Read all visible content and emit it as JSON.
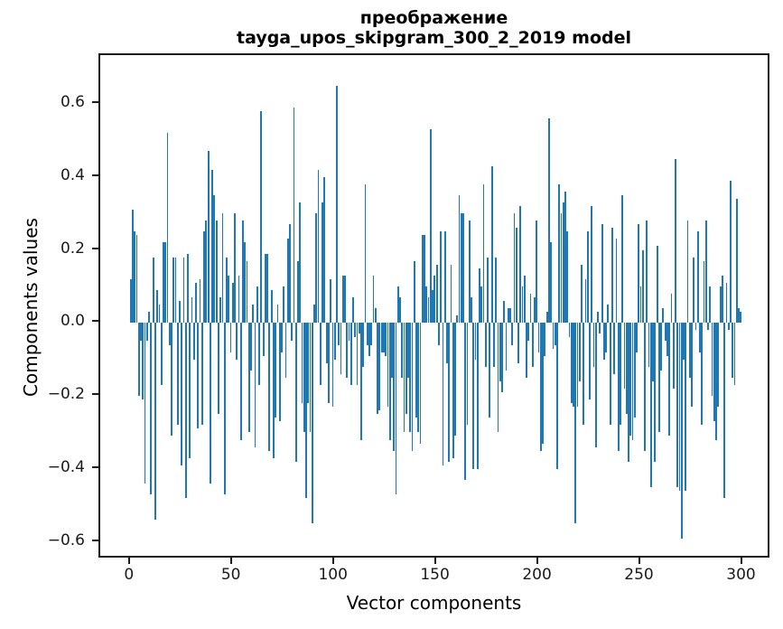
{
  "title": {
    "line1": "преображение",
    "line2": "tayga_upos_skipgram_300_2_2019 model"
  },
  "axes": {
    "xlabel": "Vector components",
    "ylabel": "Components values",
    "x_ticks": [
      0,
      50,
      100,
      150,
      200,
      250,
      300
    ],
    "x_tick_labels": [
      "0",
      "50",
      "100",
      "150",
      "200",
      "250",
      "300"
    ],
    "y_ticks": [
      0.6,
      0.4,
      0.2,
      0.0,
      -0.2,
      -0.4,
      -0.6
    ],
    "y_tick_labels": [
      "0.6",
      "0.4",
      "0.2",
      "0.0",
      "−0.2",
      "−0.4",
      "−0.6"
    ]
  },
  "chart_data": {
    "type": "bar",
    "title": "преображение\ntayga_upos_skipgram_300_2_2019 model",
    "xlabel": "Vector components",
    "ylabel": "Components values",
    "x_start": 0,
    "x_end": 299,
    "xlim": [
      -14.95,
      313.95
    ],
    "ylim": [
      -0.648,
      0.7336
    ],
    "grid": false,
    "legend": null,
    "bar_color": "#1f77b4",
    "values": [
      0.12,
      0.31,
      0.25,
      0.24,
      -0.2,
      -0.05,
      -0.21,
      -0.44,
      -0.05,
      0.03,
      -0.47,
      0.18,
      -0.54,
      0.09,
      0.05,
      -0.17,
      0.22,
      0.22,
      0.52,
      -0.06,
      -0.31,
      0.18,
      0.18,
      -0.28,
      0.06,
      -0.39,
      0.18,
      -0.48,
      0.19,
      -0.37,
      0.07,
      -0.1,
      0.11,
      -0.29,
      0.12,
      -0.28,
      0.25,
      0.28,
      0.47,
      -0.44,
      0.42,
      0.35,
      0.28,
      -0.25,
      0.07,
      0.3,
      -0.47,
      0.18,
      0.13,
      -0.08,
      0.11,
      0.3,
      -0.1,
      0.13,
      -0.32,
      0.28,
      0.22,
      0.17,
      -0.3,
      -0.13,
      0.05,
      -0.34,
      0.1,
      -0.17,
      0.58,
      -0.09,
      0.19,
      0.19,
      -0.35,
      0.09,
      -0.37,
      -0.26,
      0.05,
      -0.27,
      -0.08,
      0.1,
      -0.15,
      0.23,
      0.27,
      -0.05,
      0.59,
      -0.38,
      0.17,
      0.33,
      -0.22,
      -0.3,
      -0.48,
      -0.22,
      -0.3,
      -0.55,
      0.05,
      0.3,
      0.42,
      -0.17,
      0.33,
      0.4,
      -0.11,
      -0.22,
      0.12,
      -0.23,
      -0.1,
      0.65,
      -0.06,
      -0.14,
      0.13,
      0.13,
      -0.15,
      -0.05,
      -0.17,
      0.07,
      -0.04,
      -0.17,
      -0.03,
      -0.32,
      -0.12,
      0.38,
      -0.06,
      -0.09,
      -0.06,
      0.13,
      0.04,
      -0.25,
      -0.24,
      -0.08,
      -0.08,
      -0.09,
      -0.23,
      -0.32,
      -0.15,
      -0.35,
      -0.47,
      0.1,
      0.07,
      -0.15,
      -0.3,
      -0.25,
      -0.15,
      -0.3,
      -0.35,
      0.17,
      -0.26,
      -0.3,
      -0.33,
      0.24,
      0.24,
      0.1,
      0.07,
      0.53,
      0.09,
      0.13,
      0.16,
      -0.06,
      0.25,
      -0.39,
      0.25,
      -0.11,
      -0.38,
      0.16,
      -0.37,
      -0.31,
      0.02,
      0.35,
      0.3,
      0.3,
      -0.43,
      -0.28,
      0.28,
      0.07,
      -0.4,
      -0.1,
      -0.4,
      0.15,
      0.1,
      0.38,
      -0.12,
      0.18,
      -0.26,
      0.43,
      -0.12,
      0.18,
      -0.3,
      -0.16,
      -0.19,
      0.06,
      -0.13,
      0.04,
      0.04,
      -0.06,
      0.3,
      0.26,
      -0.11,
      0.32,
      0.1,
      0.13,
      -0.15,
      -0.05,
      0.08,
      -0.12,
      0.07,
      0.28,
      -0.08,
      -0.35,
      -0.33,
      -0.09,
      0.03,
      0.56,
      0.22,
      -0.07,
      -0.06,
      -0.4,
      0.38,
      0.3,
      0.33,
      0.36,
      0.25,
      -0.04,
      -0.22,
      -0.23,
      -0.55,
      -0.23,
      -0.16,
      0.16,
      -0.28,
      0.12,
      0.25,
      -0.21,
      0.32,
      -0.12,
      -0.34,
      0.03,
      -0.03,
      0.27,
      -0.1,
      -0.08,
      0.05,
      -0.28,
      0.26,
      -0.14,
      0.23,
      -0.35,
      -0.28,
      0.35,
      -0.18,
      -0.25,
      -0.38,
      -0.31,
      -0.32,
      -0.26,
      -0.08,
      0.27,
      0.1,
      0.2,
      -0.35,
      0.28,
      -0.12,
      -0.45,
      -0.16,
      -0.38,
      0.21,
      -0.3,
      -0.13,
      0.04,
      -0.05,
      -0.09,
      -0.31,
      0.08,
      -0.18,
      0.45,
      -0.45,
      -0.46,
      -0.59,
      -0.1,
      -0.46,
      0.28,
      -0.15,
      -0.23,
      0.18,
      -0.02,
      0.25,
      -0.08,
      -0.28,
      0.17,
      0.28,
      -0.02,
      0.1,
      -0.2,
      -0.27,
      -0.32,
      -0.23,
      0.1,
      0.13,
      -0.48,
      0.11,
      -0.02,
      0.39,
      -0.15,
      -0.17,
      0.34,
      0.04,
      0.03
    ]
  }
}
